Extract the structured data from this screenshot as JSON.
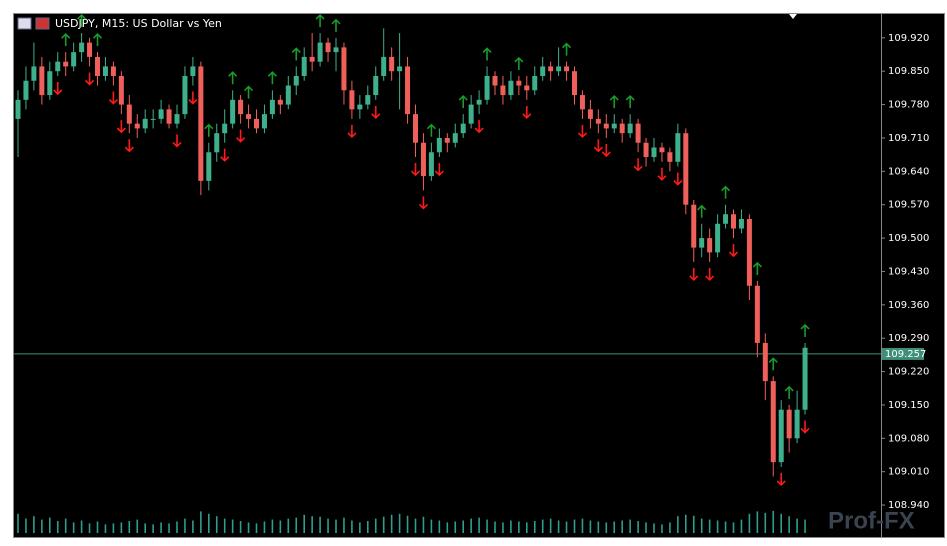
{
  "chart_data": {
    "type": "candlestick",
    "title": "USDJPY, M15:  US Dollar vs Yen",
    "watermark": "Prof-FX",
    "open": [
      109.75,
      109.79,
      109.83,
      109.86,
      109.8,
      109.85,
      109.87,
      109.86,
      109.89,
      109.91,
      109.88,
      109.84,
      109.86,
      109.84,
      109.78,
      109.74,
      109.73,
      109.75,
      109.75,
      109.77,
      109.74,
      109.76,
      109.84,
      109.86,
      109.62,
      109.68,
      109.72,
      109.74,
      109.79,
      109.76,
      109.75,
      109.73,
      109.76,
      109.79,
      109.78,
      109.82,
      109.84,
      109.88,
      109.87,
      109.91,
      109.89,
      109.9,
      109.81,
      109.77,
      109.78,
      109.8,
      109.84,
      109.88,
      109.85,
      109.86,
      109.76,
      109.7,
      109.63,
      109.68,
      109.71,
      109.7,
      109.72,
      109.74,
      109.78,
      109.79,
      109.84,
      109.82,
      109.8,
      109.83,
      109.82,
      109.81,
      109.84,
      109.86,
      109.85,
      109.86,
      109.85,
      109.8,
      109.77,
      109.75,
      109.74,
      109.73,
      109.74,
      109.72,
      109.74,
      109.7,
      109.67,
      109.69,
      109.68,
      109.66,
      109.72,
      109.57,
      109.48,
      109.5,
      109.47,
      109.53,
      109.55,
      109.52,
      109.54,
      109.4,
      109.28,
      109.2,
      109.03,
      109.14,
      109.08,
      109.14
    ],
    "high": [
      109.81,
      109.86,
      109.91,
      109.88,
      109.87,
      109.89,
      109.89,
      109.91,
      109.93,
      109.92,
      109.89,
      109.88,
      109.87,
      109.85,
      109.8,
      109.76,
      109.77,
      109.77,
      109.79,
      109.78,
      109.78,
      109.86,
      109.88,
      109.87,
      109.7,
      109.74,
      109.77,
      109.81,
      109.8,
      109.78,
      109.77,
      109.78,
      109.81,
      109.8,
      109.84,
      109.86,
      109.9,
      109.93,
      109.93,
      109.92,
      109.92,
      109.91,
      109.83,
      109.8,
      109.82,
      109.86,
      109.94,
      109.9,
      109.93,
      109.88,
      109.78,
      109.72,
      109.7,
      109.73,
      109.72,
      109.74,
      109.76,
      109.8,
      109.81,
      109.86,
      109.85,
      109.84,
      109.85,
      109.84,
      109.84,
      109.86,
      109.88,
      109.87,
      109.9,
      109.87,
      109.86,
      109.81,
      109.79,
      109.77,
      109.76,
      109.76,
      109.75,
      109.76,
      109.75,
      109.71,
      109.71,
      109.7,
      109.69,
      109.74,
      109.73,
      109.58,
      109.53,
      109.52,
      109.55,
      109.57,
      109.56,
      109.56,
      109.55,
      109.41,
      109.3,
      109.21,
      109.16,
      109.15,
      109.18,
      109.28
    ],
    "low": [
      109.67,
      109.77,
      109.81,
      109.78,
      109.79,
      109.84,
      109.84,
      109.85,
      109.87,
      109.86,
      109.82,
      109.83,
      109.82,
      109.76,
      109.72,
      109.71,
      109.72,
      109.73,
      109.74,
      109.73,
      109.73,
      109.75,
      109.82,
      109.59,
      109.6,
      109.66,
      109.7,
      109.73,
      109.74,
      109.73,
      109.72,
      109.72,
      109.75,
      109.76,
      109.77,
      109.8,
      109.83,
      109.85,
      109.86,
      109.87,
      109.85,
      109.78,
      109.75,
      109.75,
      109.77,
      109.79,
      109.83,
      109.83,
      109.77,
      109.74,
      109.67,
      109.6,
      109.62,
      109.67,
      109.68,
      109.69,
      109.71,
      109.73,
      109.76,
      109.78,
      109.8,
      109.78,
      109.79,
      109.8,
      109.79,
      109.8,
      109.83,
      109.83,
      109.84,
      109.83,
      109.78,
      109.75,
      109.73,
      109.72,
      109.71,
      109.72,
      109.7,
      109.71,
      109.68,
      109.65,
      109.66,
      109.66,
      109.64,
      109.65,
      109.55,
      109.45,
      109.46,
      109.45,
      109.46,
      109.52,
      109.5,
      109.51,
      109.37,
      109.25,
      109.16,
      109.0,
      109.02,
      109.05,
      109.07,
      109.13
    ],
    "close": [
      109.79,
      109.83,
      109.86,
      109.8,
      109.85,
      109.87,
      109.86,
      109.89,
      109.91,
      109.88,
      109.84,
      109.86,
      109.84,
      109.78,
      109.74,
      109.73,
      109.75,
      109.75,
      109.77,
      109.74,
      109.76,
      109.84,
      109.86,
      109.62,
      109.68,
      109.72,
      109.74,
      109.79,
      109.76,
      109.75,
      109.73,
      109.76,
      109.79,
      109.78,
      109.82,
      109.84,
      109.88,
      109.87,
      109.91,
      109.89,
      109.9,
      109.81,
      109.77,
      109.78,
      109.8,
      109.84,
      109.88,
      109.85,
      109.86,
      109.76,
      109.7,
      109.63,
      109.68,
      109.71,
      109.7,
      109.72,
      109.74,
      109.78,
      109.79,
      109.84,
      109.82,
      109.8,
      109.83,
      109.82,
      109.81,
      109.84,
      109.86,
      109.85,
      109.86,
      109.85,
      109.8,
      109.77,
      109.75,
      109.74,
      109.73,
      109.74,
      109.72,
      109.74,
      109.7,
      109.67,
      109.69,
      109.68,
      109.66,
      109.72,
      109.57,
      109.48,
      109.5,
      109.47,
      109.53,
      109.55,
      109.52,
      109.54,
      109.4,
      109.28,
      109.2,
      109.03,
      109.14,
      109.08,
      109.14,
      109.27
    ],
    "volume": [
      40,
      30,
      35,
      28,
      32,
      25,
      30,
      22,
      26,
      20,
      24,
      18,
      20,
      22,
      25,
      28,
      20,
      18,
      22,
      20,
      24,
      30,
      26,
      45,
      40,
      35,
      30,
      28,
      25,
      22,
      20,
      24,
      28,
      26,
      30,
      32,
      38,
      35,
      34,
      30,
      28,
      32,
      26,
      22,
      25,
      30,
      34,
      38,
      40,
      36,
      30,
      34,
      28,
      26,
      22,
      24,
      26,
      30,
      32,
      28,
      24,
      22,
      26,
      24,
      22,
      25,
      28,
      30,
      26,
      24,
      28,
      30,
      26,
      24,
      22,
      24,
      26,
      28,
      25,
      22,
      20,
      18,
      22,
      35,
      38,
      36,
      30,
      28,
      26,
      24,
      22,
      28,
      40,
      45,
      42,
      46,
      40,
      35,
      30,
      28
    ],
    "volume_ylim": [
      0,
      100
    ],
    "up_signals": [
      6,
      8,
      10,
      24,
      27,
      29,
      32,
      35,
      38,
      40,
      52,
      56,
      59,
      63,
      69,
      75,
      77,
      86,
      89,
      93,
      95,
      97,
      99
    ],
    "down_signals": [
      5,
      9,
      12,
      13,
      14,
      20,
      22,
      26,
      28,
      42,
      45,
      50,
      51,
      53,
      58,
      64,
      71,
      73,
      74,
      78,
      81,
      83,
      85,
      87,
      90,
      96,
      99
    ],
    "current_price": 109.257,
    "ylim": [
      108.873,
      109.97
    ],
    "yticks": [
      {
        "value": 109.92,
        "label": "109.920"
      },
      {
        "value": 109.85,
        "label": "109.850"
      },
      {
        "value": 109.78,
        "label": "109.780"
      },
      {
        "value": 109.71,
        "label": "109.710"
      },
      {
        "value": 109.64,
        "label": "109.640"
      },
      {
        "value": 109.57,
        "label": "109.570"
      },
      {
        "value": 109.5,
        "label": "109.500"
      },
      {
        "value": 109.43,
        "label": "109.430"
      },
      {
        "value": 109.36,
        "label": "109.360"
      },
      {
        "value": 109.29,
        "label": "109.290"
      },
      {
        "value": 109.22,
        "label": "109.220"
      },
      {
        "value": 109.15,
        "label": "109.150"
      },
      {
        "value": 109.08,
        "label": "109.080"
      },
      {
        "value": 109.01,
        "label": "109.010"
      },
      {
        "value": 108.94,
        "label": "108.940"
      }
    ],
    "up_color": "#3fb08c",
    "down_color": "#f0605a",
    "up_signal_color": "#1a9a2a",
    "down_signal_color": "#ff1a1a",
    "volume_color": "#2f9e8f",
    "price_line_color": "#3f8f78"
  }
}
